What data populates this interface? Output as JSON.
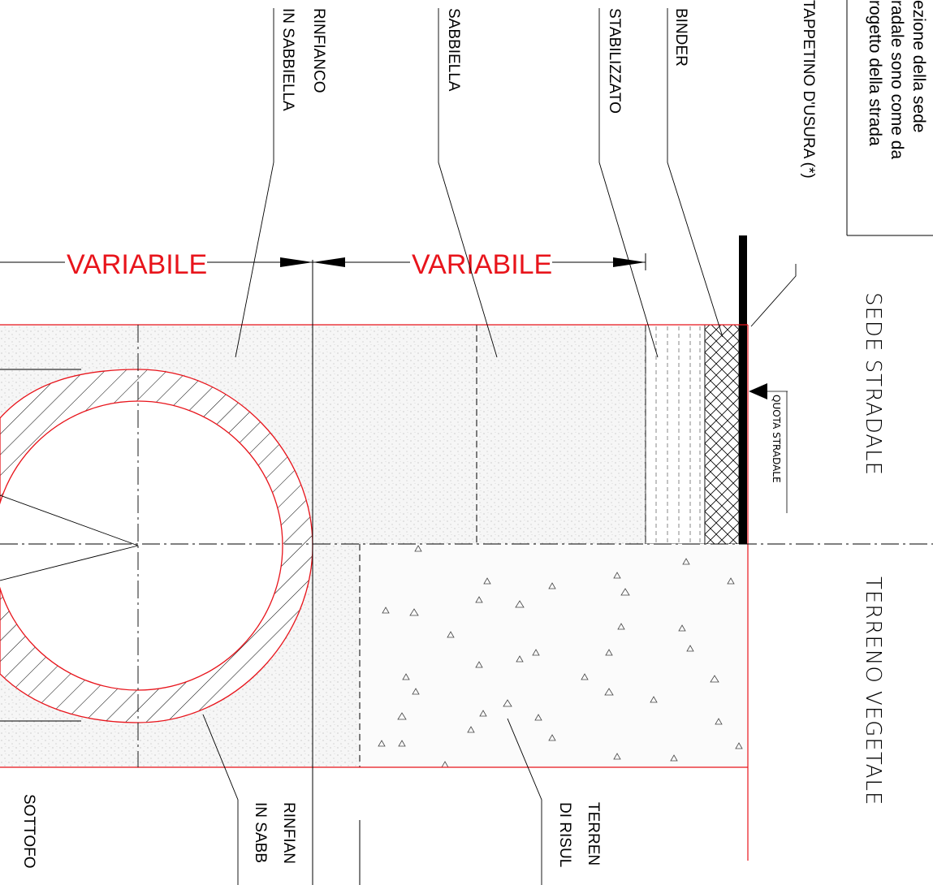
{
  "section_labels": {
    "sede_stradale": "SEDE STRADALE",
    "terreno_vegetale": "TERRENO VEGETALE",
    "quota_stradale": "QUOTA STRADALE"
  },
  "dimensions": {
    "variabile_left": "VARIABILE",
    "variabile_right": "VARIABILE"
  },
  "layer_labels": {
    "tappetino": "TAPPETINO D'USURA (*)",
    "binder": "BINDER",
    "stabilizzato": "STABILIZZATO",
    "sabbiella": "SABBIELLA",
    "rinfianco_top_1": "RINFIANCO",
    "rinfianco_top_2": "IN SABBIELLA",
    "rinfianco_bottom_1": "RINFIAN",
    "rinfianco_bottom_2": "IN SABB",
    "terreno_1": "TERREN",
    "terreno_2": "DI RISUL",
    "sottofondo_1": "SOTTOFO"
  },
  "note": {
    "line1": "ezione della sede",
    "line2": "radale sono come da",
    "line3": "rogetto della strada"
  },
  "colors": {
    "outline_red": "#e8141b",
    "ink": "#000000",
    "fill_sand": "#f4f4f4"
  }
}
